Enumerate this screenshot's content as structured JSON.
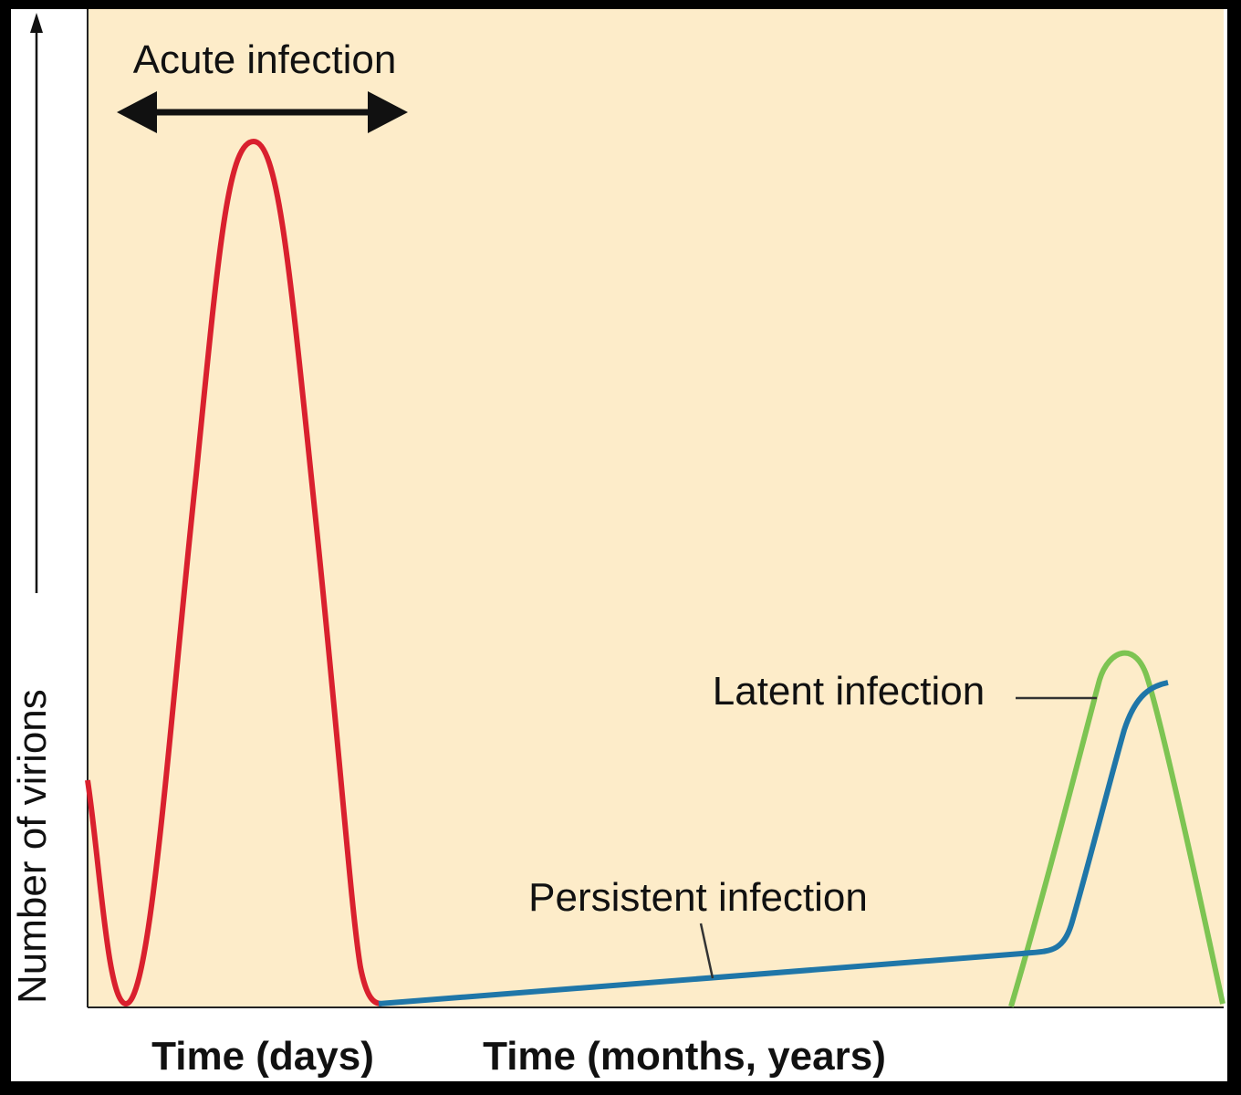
{
  "acute_label": "Acute infection",
  "latent_label": "Latent infection",
  "persistent_label": "Persistent infection",
  "y_axis_label": "Number of virions",
  "x_axis_labels": [
    "Time (days)",
    "Time (months, years)"
  ]
}
